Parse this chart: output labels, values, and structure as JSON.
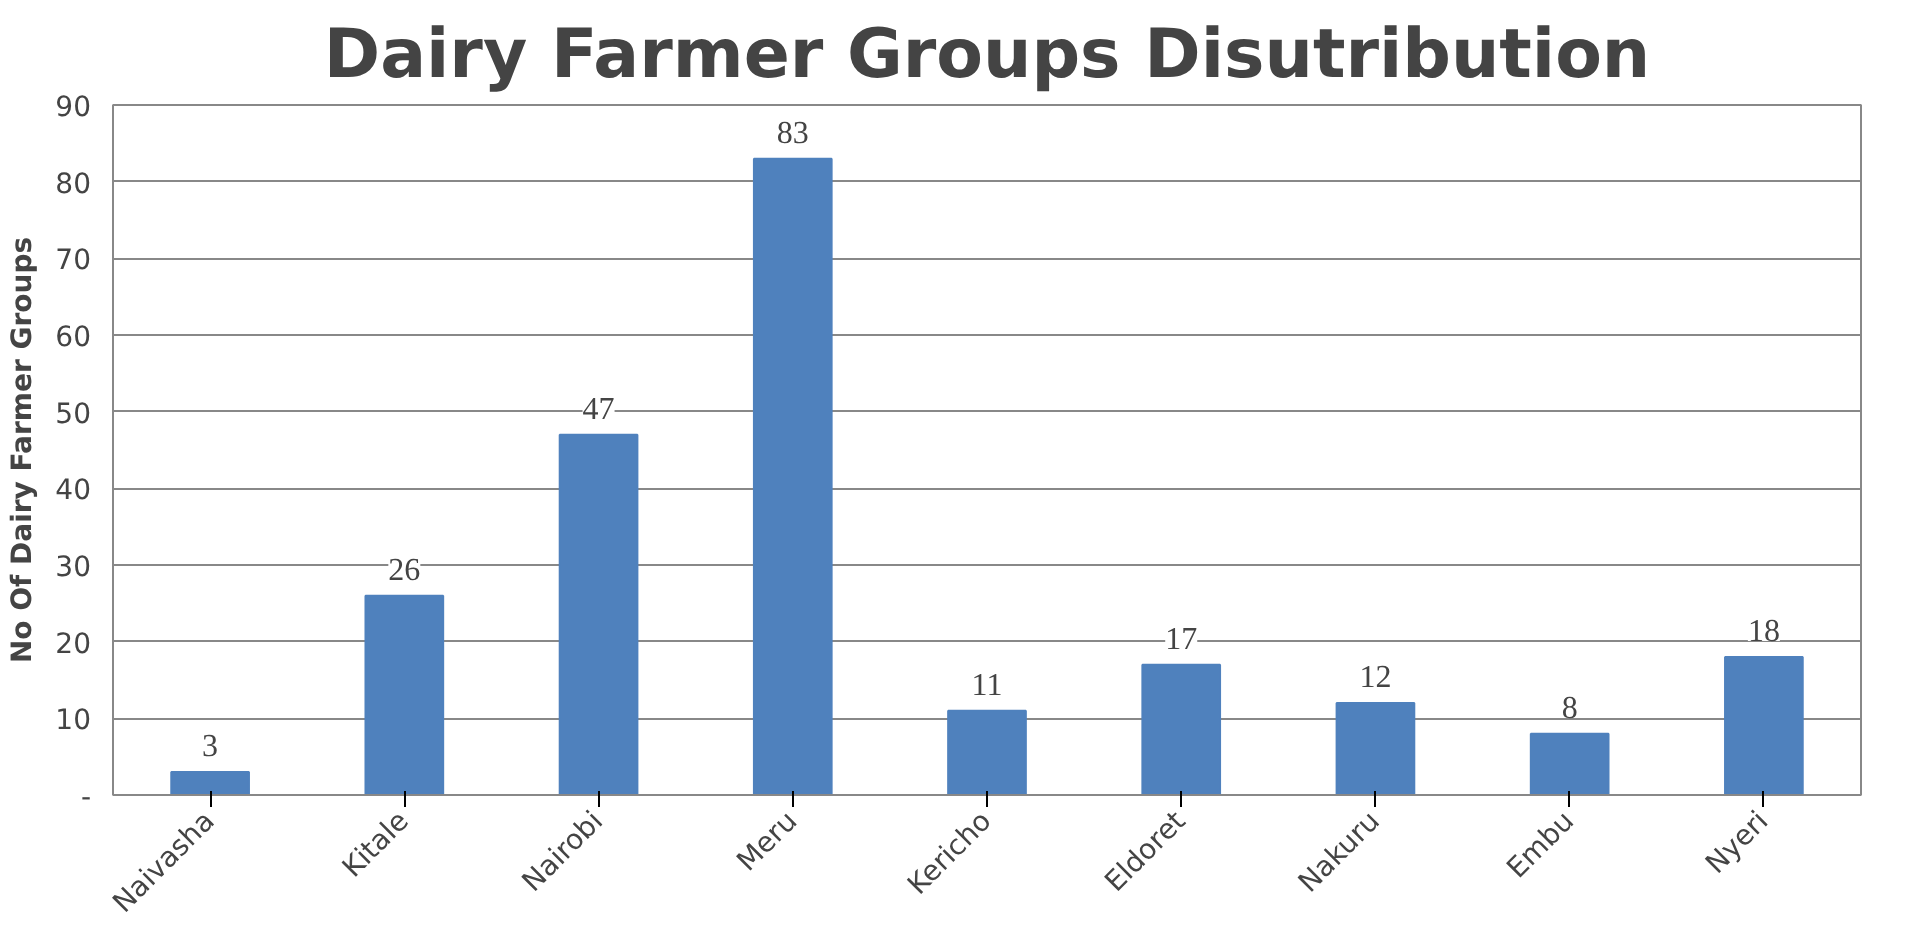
{
  "chart_data": {
    "type": "bar",
    "title": "Dairy Farmer Groups Disutribution",
    "ylabel": "No Of Dairy Farmer Groups",
    "categories": [
      "Naivasha",
      "Kitale",
      "Nairobi",
      "Meru",
      "Kericho",
      "Eldoret",
      "Nakuru",
      "Embu",
      "Nyeri"
    ],
    "values": [
      3,
      26,
      47,
      83,
      11,
      17,
      12,
      8,
      18
    ],
    "color": "#4f81bd",
    "ylim": [
      0,
      90
    ],
    "yticks": [
      {
        "value": 0,
        "label": "-"
      },
      10,
      20,
      30,
      40,
      50,
      60,
      70,
      80,
      90
    ],
    "grid": "y",
    "data_labels": true
  }
}
